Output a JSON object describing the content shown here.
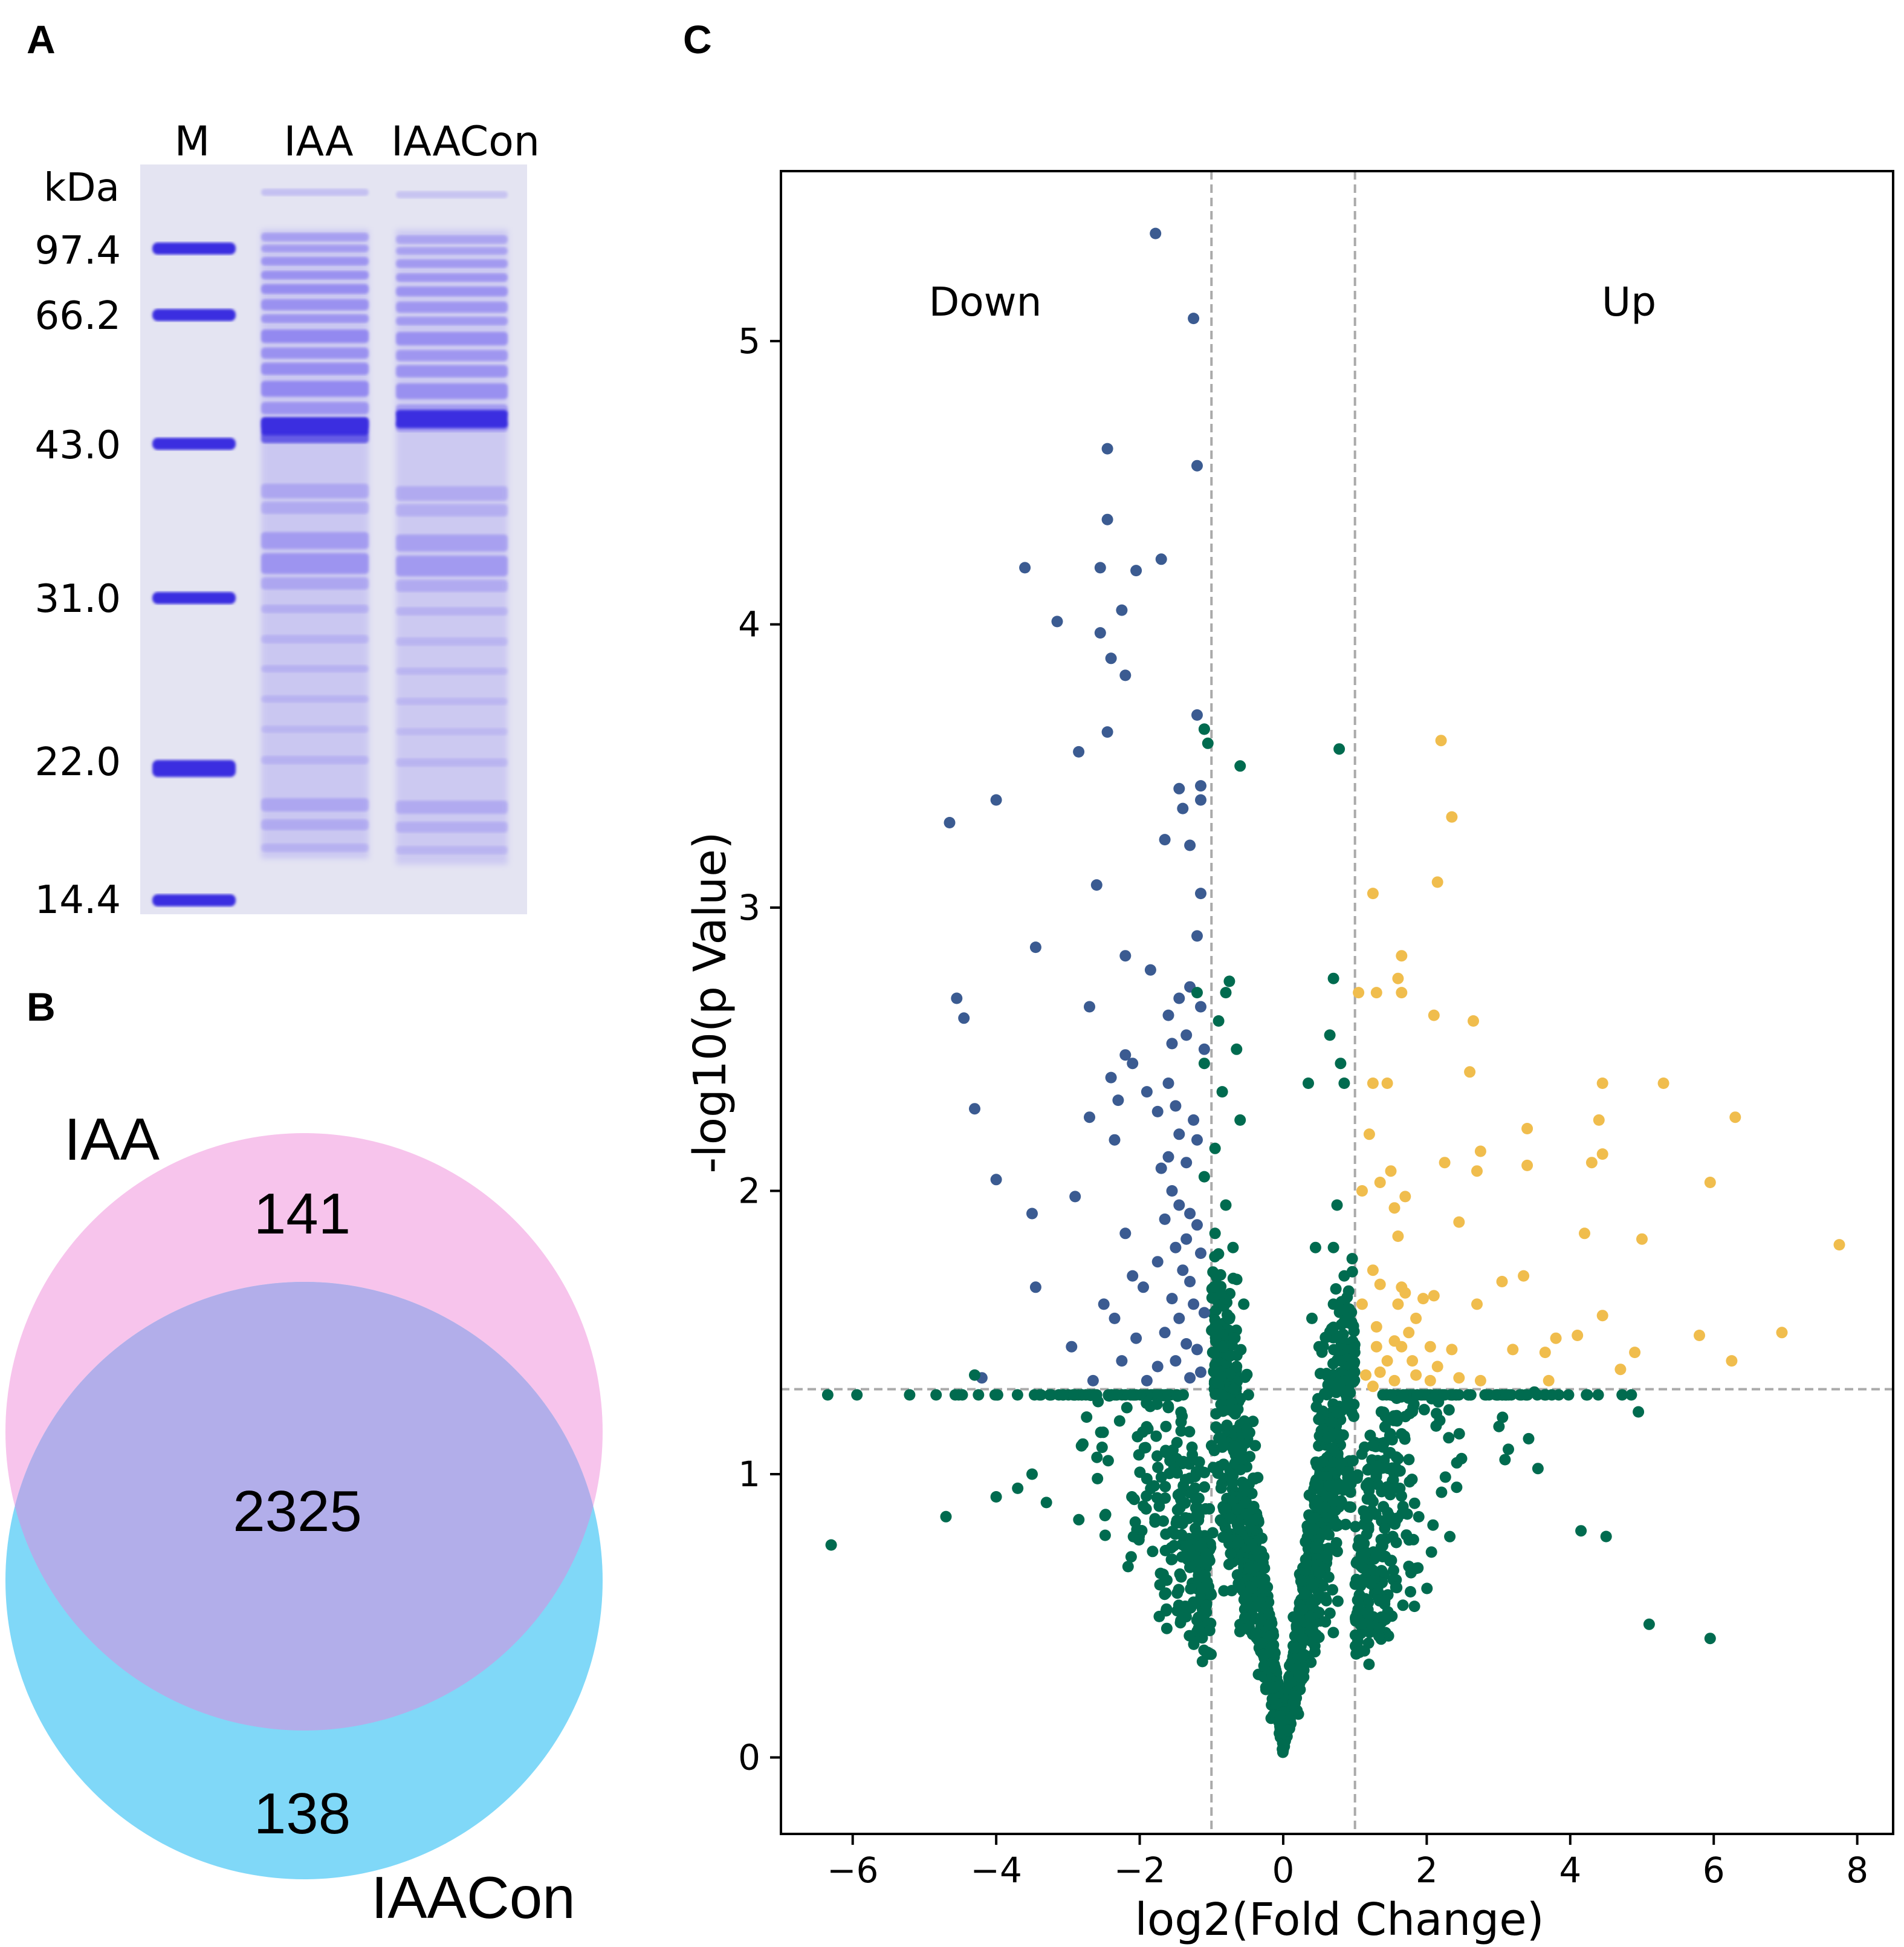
{
  "panels": {
    "a": "A",
    "b": "B",
    "c": "C"
  },
  "gel": {
    "lanes": [
      "M",
      "IAA",
      "IAACon"
    ],
    "unit": "kDa",
    "markers": [
      "97.4",
      "66.2",
      "43.0",
      "31.0",
      "22.0",
      "14.4"
    ],
    "colors": {
      "background": "#e4e4f2",
      "band": "#3a2ee0",
      "smear": "#8a7ff0"
    }
  },
  "venn": {
    "sets": [
      "IAA",
      "IAACon"
    ],
    "counts": {
      "only_iaa": "141",
      "shared": "2325",
      "only_iaacon": "138"
    },
    "colors": {
      "iaa": "#f7c4ec",
      "iaacon": "#80d8f8",
      "overlap": "#b2aeea"
    }
  },
  "chart_data": {
    "type": "scatter",
    "title": "",
    "xlabel": "log2(Fold Change)",
    "ylabel": "-log10(p Value)",
    "xlim": [
      -7,
      8.5
    ],
    "ylim": [
      -0.27,
      5.6
    ],
    "xticks": [
      -6,
      -4,
      -2,
      0,
      2,
      4,
      6,
      8
    ],
    "yticks": [
      0,
      1,
      2,
      3,
      4,
      5
    ],
    "xtick_labels": [
      "−6",
      "−4",
      "−2",
      "0",
      "2",
      "4",
      "6",
      "8"
    ],
    "ytick_labels": [
      "0",
      "1",
      "2",
      "3",
      "4",
      "5"
    ],
    "thresholds": {
      "log2fc": [
        -1,
        1
      ],
      "neg_log10_p": 1.3
    },
    "region_labels": {
      "down": "Down",
      "up": "Up"
    },
    "colors": {
      "down": "#3b5b91",
      "up": "#f0bd4d",
      "ns": "#006b4f",
      "threshold": "#aaaaaa"
    },
    "series": [
      {
        "name": "Down",
        "points": [
          [
            -1.78,
            5.38
          ],
          [
            -1.25,
            5.08
          ],
          [
            -2.45,
            4.62
          ],
          [
            -1.2,
            4.56
          ],
          [
            -2.45,
            4.37
          ],
          [
            -3.6,
            4.2
          ],
          [
            -2.55,
            4.2
          ],
          [
            -2.05,
            4.19
          ],
          [
            -1.7,
            4.23
          ],
          [
            -2.25,
            4.05
          ],
          [
            -3.15,
            4.01
          ],
          [
            -2.55,
            3.97
          ],
          [
            -2.4,
            3.88
          ],
          [
            -2.2,
            3.82
          ],
          [
            -1.2,
            3.68
          ],
          [
            -1.1,
            3.63
          ],
          [
            -2.85,
            3.55
          ],
          [
            -2.45,
            3.62
          ],
          [
            -1.45,
            3.42
          ],
          [
            -1.15,
            3.43
          ],
          [
            -1.4,
            3.35
          ],
          [
            -1.15,
            3.38
          ],
          [
            -4.0,
            3.38
          ],
          [
            -4.65,
            3.3
          ],
          [
            -1.65,
            3.24
          ],
          [
            -1.3,
            3.22
          ],
          [
            -2.6,
            3.08
          ],
          [
            -1.15,
            3.05
          ],
          [
            -1.2,
            2.9
          ],
          [
            -3.45,
            2.86
          ],
          [
            -2.2,
            2.83
          ],
          [
            -1.85,
            2.78
          ],
          [
            -1.45,
            2.68
          ],
          [
            -1.3,
            2.72
          ],
          [
            -1.15,
            2.65
          ],
          [
            -1.6,
            2.62
          ],
          [
            -4.55,
            2.68
          ],
          [
            -4.45,
            2.61
          ],
          [
            -2.7,
            2.65
          ],
          [
            -1.35,
            2.55
          ],
          [
            -1.55,
            2.52
          ],
          [
            -1.1,
            2.5
          ],
          [
            -2.2,
            2.48
          ],
          [
            -2.1,
            2.45
          ],
          [
            -2.4,
            2.4
          ],
          [
            -1.9,
            2.35
          ],
          [
            -1.6,
            2.38
          ],
          [
            -1.5,
            2.3
          ],
          [
            -2.3,
            2.32
          ],
          [
            -1.25,
            2.25
          ],
          [
            -4.3,
            2.29
          ],
          [
            -2.7,
            2.26
          ],
          [
            -1.75,
            2.28
          ],
          [
            -1.45,
            2.2
          ],
          [
            -1.2,
            2.18
          ],
          [
            -2.35,
            2.18
          ],
          [
            -1.6,
            2.12
          ],
          [
            -1.35,
            2.1
          ],
          [
            -1.7,
            2.08
          ],
          [
            -1.55,
            2.0
          ],
          [
            -1.45,
            1.95
          ],
          [
            -4.0,
            2.04
          ],
          [
            -2.9,
            1.98
          ],
          [
            -1.3,
            1.92
          ],
          [
            -1.65,
            1.9
          ],
          [
            -1.2,
            1.88
          ],
          [
            -3.5,
            1.92
          ],
          [
            -1.35,
            1.83
          ],
          [
            -2.2,
            1.85
          ],
          [
            -1.5,
            1.8
          ],
          [
            -1.15,
            1.78
          ],
          [
            -1.75,
            1.75
          ],
          [
            -1.4,
            1.72
          ],
          [
            -2.1,
            1.7
          ],
          [
            -1.3,
            1.68
          ],
          [
            -3.45,
            1.66
          ],
          [
            -1.95,
            1.66
          ],
          [
            -1.55,
            1.62
          ],
          [
            -1.25,
            1.6
          ],
          [
            -2.5,
            1.6
          ],
          [
            -1.45,
            1.55
          ],
          [
            -1.1,
            1.57
          ],
          [
            -2.35,
            1.55
          ],
          [
            -1.65,
            1.5
          ],
          [
            -2.05,
            1.48
          ],
          [
            -1.35,
            1.46
          ],
          [
            -1.2,
            1.44
          ],
          [
            -2.95,
            1.45
          ],
          [
            -1.5,
            1.4
          ],
          [
            -2.25,
            1.4
          ],
          [
            -1.75,
            1.38
          ],
          [
            -1.15,
            1.36
          ],
          [
            -4.2,
            1.34
          ],
          [
            -2.65,
            1.33
          ],
          [
            -1.9,
            1.33
          ],
          [
            -1.3,
            1.34
          ]
        ]
      },
      {
        "name": "Up",
        "points": [
          [
            2.2,
            3.59
          ],
          [
            2.35,
            3.32
          ],
          [
            1.25,
            3.05
          ],
          [
            2.15,
            3.09
          ],
          [
            1.65,
            2.83
          ],
          [
            1.6,
            2.75
          ],
          [
            1.05,
            2.7
          ],
          [
            1.3,
            2.7
          ],
          [
            1.65,
            2.7
          ],
          [
            2.65,
            2.6
          ],
          [
            2.1,
            2.62
          ],
          [
            2.6,
            2.42
          ],
          [
            1.45,
            2.38
          ],
          [
            1.25,
            2.38
          ],
          [
            4.45,
            2.38
          ],
          [
            5.3,
            2.38
          ],
          [
            6.3,
            2.26
          ],
          [
            4.4,
            2.25
          ],
          [
            3.4,
            2.22
          ],
          [
            1.2,
            2.2
          ],
          [
            2.75,
            2.14
          ],
          [
            4.45,
            2.13
          ],
          [
            2.25,
            2.1
          ],
          [
            3.4,
            2.09
          ],
          [
            4.3,
            2.1
          ],
          [
            2.7,
            2.07
          ],
          [
            1.5,
            2.07
          ],
          [
            1.35,
            2.03
          ],
          [
            5.95,
            2.03
          ],
          [
            1.1,
            2.0
          ],
          [
            1.7,
            1.98
          ],
          [
            1.55,
            1.94
          ],
          [
            2.45,
            1.89
          ],
          [
            1.6,
            1.84
          ],
          [
            4.2,
            1.85
          ],
          [
            5.0,
            1.83
          ],
          [
            7.75,
            1.81
          ],
          [
            1.25,
            1.72
          ],
          [
            1.35,
            1.67
          ],
          [
            3.35,
            1.7
          ],
          [
            3.05,
            1.68
          ],
          [
            1.65,
            1.66
          ],
          [
            1.7,
            1.64
          ],
          [
            1.95,
            1.62
          ],
          [
            1.6,
            1.6
          ],
          [
            2.1,
            1.63
          ],
          [
            2.7,
            1.6
          ],
          [
            1.1,
            1.6
          ],
          [
            1.85,
            1.55
          ],
          [
            1.3,
            1.52
          ],
          [
            4.45,
            1.56
          ],
          [
            1.75,
            1.5
          ],
          [
            1.55,
            1.47
          ],
          [
            6.95,
            1.5
          ],
          [
            4.1,
            1.49
          ],
          [
            3.8,
            1.48
          ],
          [
            5.8,
            1.49
          ],
          [
            1.3,
            1.45
          ],
          [
            1.65,
            1.45
          ],
          [
            2.05,
            1.45
          ],
          [
            2.35,
            1.44
          ],
          [
            3.2,
            1.44
          ],
          [
            1.45,
            1.4
          ],
          [
            1.8,
            1.4
          ],
          [
            3.65,
            1.43
          ],
          [
            4.9,
            1.43
          ],
          [
            2.15,
            1.38
          ],
          [
            1.35,
            1.36
          ],
          [
            1.15,
            1.35
          ],
          [
            6.25,
            1.4
          ],
          [
            1.55,
            1.33
          ],
          [
            2.05,
            1.33
          ],
          [
            1.85,
            1.35
          ],
          [
            2.45,
            1.34
          ],
          [
            3.7,
            1.33
          ],
          [
            4.7,
            1.37
          ],
          [
            1.25,
            1.31
          ],
          [
            2.75,
            1.33
          ]
        ]
      },
      {
        "name": "Not significant",
        "points": [
          [
            -1.1,
            3.63
          ],
          [
            -1.05,
            3.58
          ],
          [
            -0.6,
            3.5
          ],
          [
            0.78,
            3.56
          ],
          [
            -1.2,
            2.7
          ],
          [
            -0.8,
            2.7
          ],
          [
            -0.75,
            2.74
          ],
          [
            -0.9,
            2.6
          ],
          [
            0.7,
            2.75
          ],
          [
            0.65,
            2.55
          ],
          [
            -1.1,
            2.45
          ],
          [
            -0.65,
            2.5
          ],
          [
            0.8,
            2.45
          ],
          [
            0.85,
            2.38
          ],
          [
            0.35,
            2.38
          ],
          [
            -0.85,
            2.35
          ],
          [
            -0.6,
            2.25
          ],
          [
            -0.95,
            2.15
          ],
          [
            -1.1,
            2.05
          ],
          [
            -0.8,
            1.95
          ],
          [
            -0.95,
            1.85
          ],
          [
            -0.7,
            1.8
          ],
          [
            0.75,
            1.95
          ],
          [
            0.7,
            1.8
          ],
          [
            0.85,
            1.7
          ],
          [
            0.45,
            1.8
          ],
          [
            0.7,
            1.6
          ],
          [
            0.4,
            1.55
          ],
          [
            -0.75,
            1.55
          ],
          [
            -0.55,
            1.6
          ],
          [
            0.9,
            1.55
          ],
          [
            0.5,
            1.45
          ],
          [
            0.8,
            1.4
          ],
          [
            -0.85,
            1.45
          ],
          [
            -0.65,
            1.38
          ],
          [
            0.95,
            1.35
          ],
          [
            -4.3,
            1.35
          ]
        ]
      }
    ],
    "ns_cloud": {
      "note": "dense non-significant point cloud rendered procedurally"
    }
  }
}
